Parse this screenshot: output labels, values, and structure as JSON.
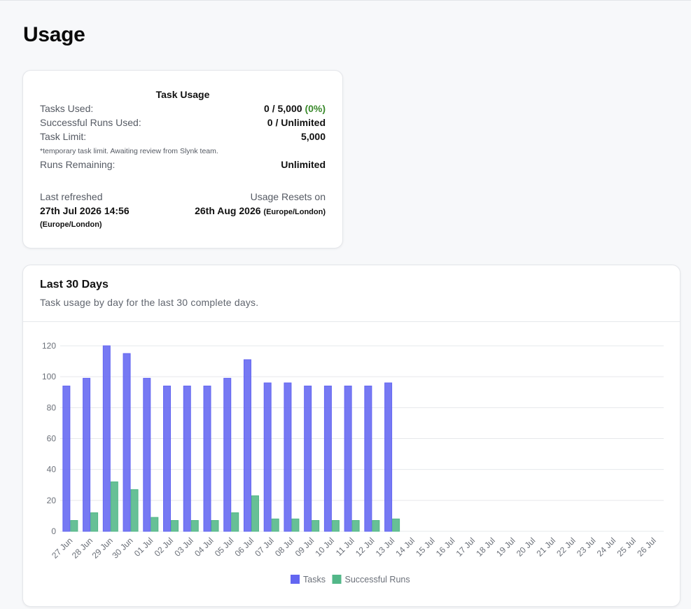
{
  "page": {
    "title": "Usage"
  },
  "usage": {
    "title": "Task Usage",
    "tasks_used_label": "Tasks Used:",
    "tasks_used_value": "0 / 5,000",
    "tasks_used_pct": "(0%)",
    "runs_used_label": "Successful Runs Used:",
    "runs_used_value": "0 / Unlimited",
    "task_limit_label": "Task Limit:",
    "task_limit_value": "5,000",
    "note": "*temporary task limit. Awaiting review from Slynk team.",
    "runs_remaining_label": "Runs Remaining:",
    "runs_remaining_value": "Unlimited",
    "refreshed_label": "Last refreshed",
    "refreshed_value": "27th Jul 2026 14:56",
    "refreshed_tz": "(Europe/London)",
    "reset_label": "Usage Resets on",
    "reset_value": "26th Aug 2026",
    "reset_tz": "(Europe/London)"
  },
  "chart_section": {
    "title": "Last 30 Days",
    "subtitle": "Task usage by day for the last 30 complete days."
  },
  "colors": {
    "tasks": "#6366f1",
    "runs": "#52b788",
    "pct_green": "#3b8a2c"
  },
  "chart_data": {
    "type": "bar",
    "categories": [
      "27 Jun",
      "28 Jun",
      "29 Jun",
      "30 Jun",
      "01 Jul",
      "02 Jul",
      "03 Jul",
      "04 Jul",
      "05 Jul",
      "06 Jul",
      "07 Jul",
      "08 Jul",
      "09 Jul",
      "10 Jul",
      "11 Jul",
      "12 Jul",
      "13 Jul",
      "14 Jul",
      "15 Jul",
      "16 Jul",
      "17 Jul",
      "18 Jul",
      "19 Jul",
      "20 Jul",
      "21 Jul",
      "22 Jul",
      "23 Jul",
      "24 Jul",
      "25 Jul",
      "26 Jul"
    ],
    "series": [
      {
        "name": "Tasks",
        "values": [
          94,
          99,
          120,
          115,
          99,
          94,
          94,
          94,
          99,
          111,
          96,
          96,
          94,
          94,
          94,
          94,
          96,
          0,
          0,
          0,
          0,
          0,
          0,
          0,
          0,
          0,
          0,
          0,
          0,
          0
        ]
      },
      {
        "name": "Successful Runs",
        "values": [
          7,
          12,
          32,
          27,
          9,
          7,
          7,
          7,
          12,
          23,
          8,
          8,
          7,
          7,
          7,
          7,
          8,
          0,
          0,
          0,
          0,
          0,
          0,
          0,
          0,
          0,
          0,
          0,
          0,
          0
        ]
      }
    ],
    "yticks": [
      0,
      20,
      40,
      60,
      80,
      100,
      120
    ],
    "ylim": [
      0,
      120
    ],
    "grid": true,
    "legend": "bottom-center"
  }
}
